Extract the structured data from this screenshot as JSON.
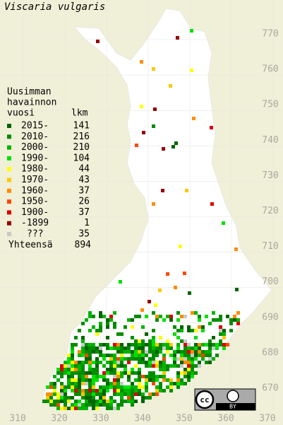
{
  "title": "Viscaria vulgaris",
  "legend": {
    "heading": [
      "Uusimman",
      "havainnon",
      "vuosi"
    ],
    "count_heading": "lkm",
    "rows": [
      {
        "label": "2015-",
        "count": "141",
        "color": "#006400"
      },
      {
        "label": "2010-",
        "count": "216",
        "color": "#008c00"
      },
      {
        "label": "2000-",
        "count": "210",
        "color": "#00b400"
      },
      {
        "label": "1990-",
        "count": "104",
        "color": "#00e000"
      },
      {
        "label": "1980-",
        "count": "44",
        "color": "#ffff00"
      },
      {
        "label": "1970-",
        "count": "43",
        "color": "#ffc800"
      },
      {
        "label": "1960-",
        "count": "37",
        "color": "#ff8c00"
      },
      {
        "label": "1950-",
        "count": "26",
        "color": "#ff4600"
      },
      {
        "label": "1900-",
        "count": "37",
        "color": "#dc0000"
      },
      {
        "label": "-1899",
        "count": "1",
        "color": "#960000"
      },
      {
        "label": "???",
        "count": "35",
        "color": "#c8c8c8"
      }
    ],
    "total_label": "Yhteensä",
    "total": "894"
  },
  "grid": {
    "xticks": [
      310,
      320,
      330,
      340,
      350,
      360,
      370
    ],
    "yticks": [
      670,
      680,
      690,
      700,
      710,
      720,
      730,
      740,
      750,
      760,
      770
    ]
  },
  "license": {
    "cc": "cc",
    "by": "BY"
  }
}
